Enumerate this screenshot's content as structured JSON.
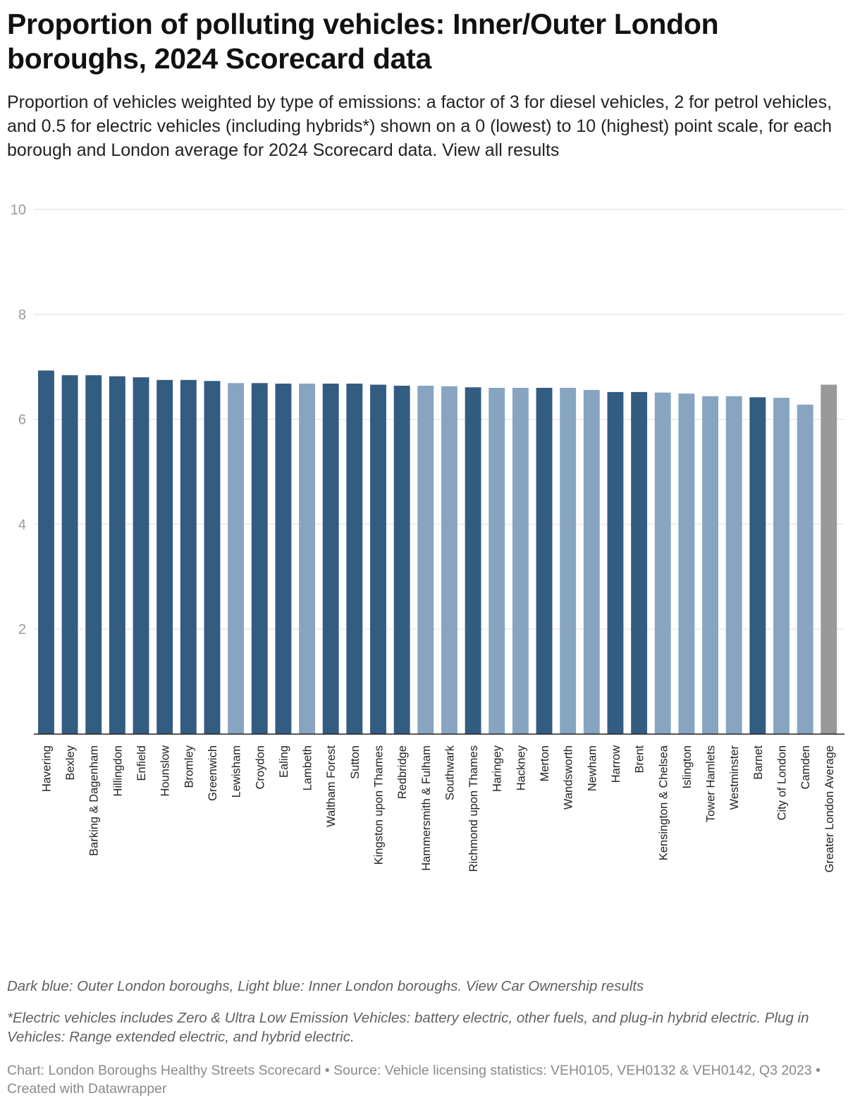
{
  "title": "Proportion of polluting vehicles: Inner/Outer London boroughs, 2024 Scorecard data",
  "subtitle": "Proportion of vehicles weighted by type of emissions: a factor of 3 for diesel vehicles, 2 for petrol vehicles, and 0.5 for electric vehicles (including hybrids*) shown on a 0 (lowest) to 10 (highest) point scale, for each borough and London average for 2024 Scorecard data. View all results",
  "colors": {
    "outer": "#335c81",
    "inner": "#87a5c1",
    "average": "#999999",
    "grid": "#e4e4e4"
  },
  "chart_data": {
    "type": "bar",
    "title": "Proportion of polluting vehicles: Inner/Outer London boroughs, 2024 Scorecard data",
    "xlabel": "",
    "ylabel": "",
    "ylim": [
      0,
      10
    ],
    "yticks": [
      2,
      4,
      6,
      8,
      10
    ],
    "grid": true,
    "categories": [
      "Havering",
      "Bexley",
      "Barking & Dagenham",
      "Hillingdon",
      "Enfield",
      "Hounslow",
      "Bromley",
      "Greenwich",
      "Lewisham",
      "Croydon",
      "Ealing",
      "Lambeth",
      "Waltham Forest",
      "Sutton",
      "Kingston upon Thames",
      "Redbridge",
      "Hammersmith & Fulham",
      "Southwark",
      "Richmond upon Thames",
      "Haringey",
      "Hackney",
      "Merton",
      "Wandsworth",
      "Newham",
      "Harrow",
      "Brent",
      "Kensington & Chelsea",
      "Islington",
      "Tower Hamlets",
      "Westminster",
      "Barnet",
      "City of London",
      "Camden",
      "Greater London Average"
    ],
    "values": [
      6.93,
      6.84,
      6.84,
      6.82,
      6.8,
      6.75,
      6.75,
      6.73,
      6.69,
      6.69,
      6.68,
      6.68,
      6.68,
      6.68,
      6.66,
      6.64,
      6.64,
      6.63,
      6.61,
      6.6,
      6.6,
      6.6,
      6.6,
      6.56,
      6.52,
      6.52,
      6.51,
      6.49,
      6.44,
      6.44,
      6.42,
      6.41,
      6.28,
      6.66
    ],
    "groups": [
      "outer",
      "outer",
      "outer",
      "outer",
      "outer",
      "outer",
      "outer",
      "outer",
      "inner",
      "outer",
      "outer",
      "inner",
      "outer",
      "outer",
      "outer",
      "outer",
      "inner",
      "inner",
      "outer",
      "inner",
      "inner",
      "outer",
      "inner",
      "inner",
      "outer",
      "outer",
      "inner",
      "inner",
      "inner",
      "inner",
      "outer",
      "inner",
      "inner",
      "average"
    ]
  },
  "notes": {
    "legend": "Dark blue: Outer London boroughs, Light blue: Inner London boroughs. View Car Ownership results",
    "footnote": "*Electric vehicles includes Zero & Ultra Low Emission Vehicles: battery electric, other fuels, and plug-in hybrid electric. Plug in Vehicles: Range extended electric, and hybrid electric."
  },
  "source": "Chart: London Boroughs Healthy Streets Scorecard • Source: Vehicle licensing statistics: VEH0105, VEH0132 & VEH0142, Q3 2023 • Created with Datawrapper"
}
